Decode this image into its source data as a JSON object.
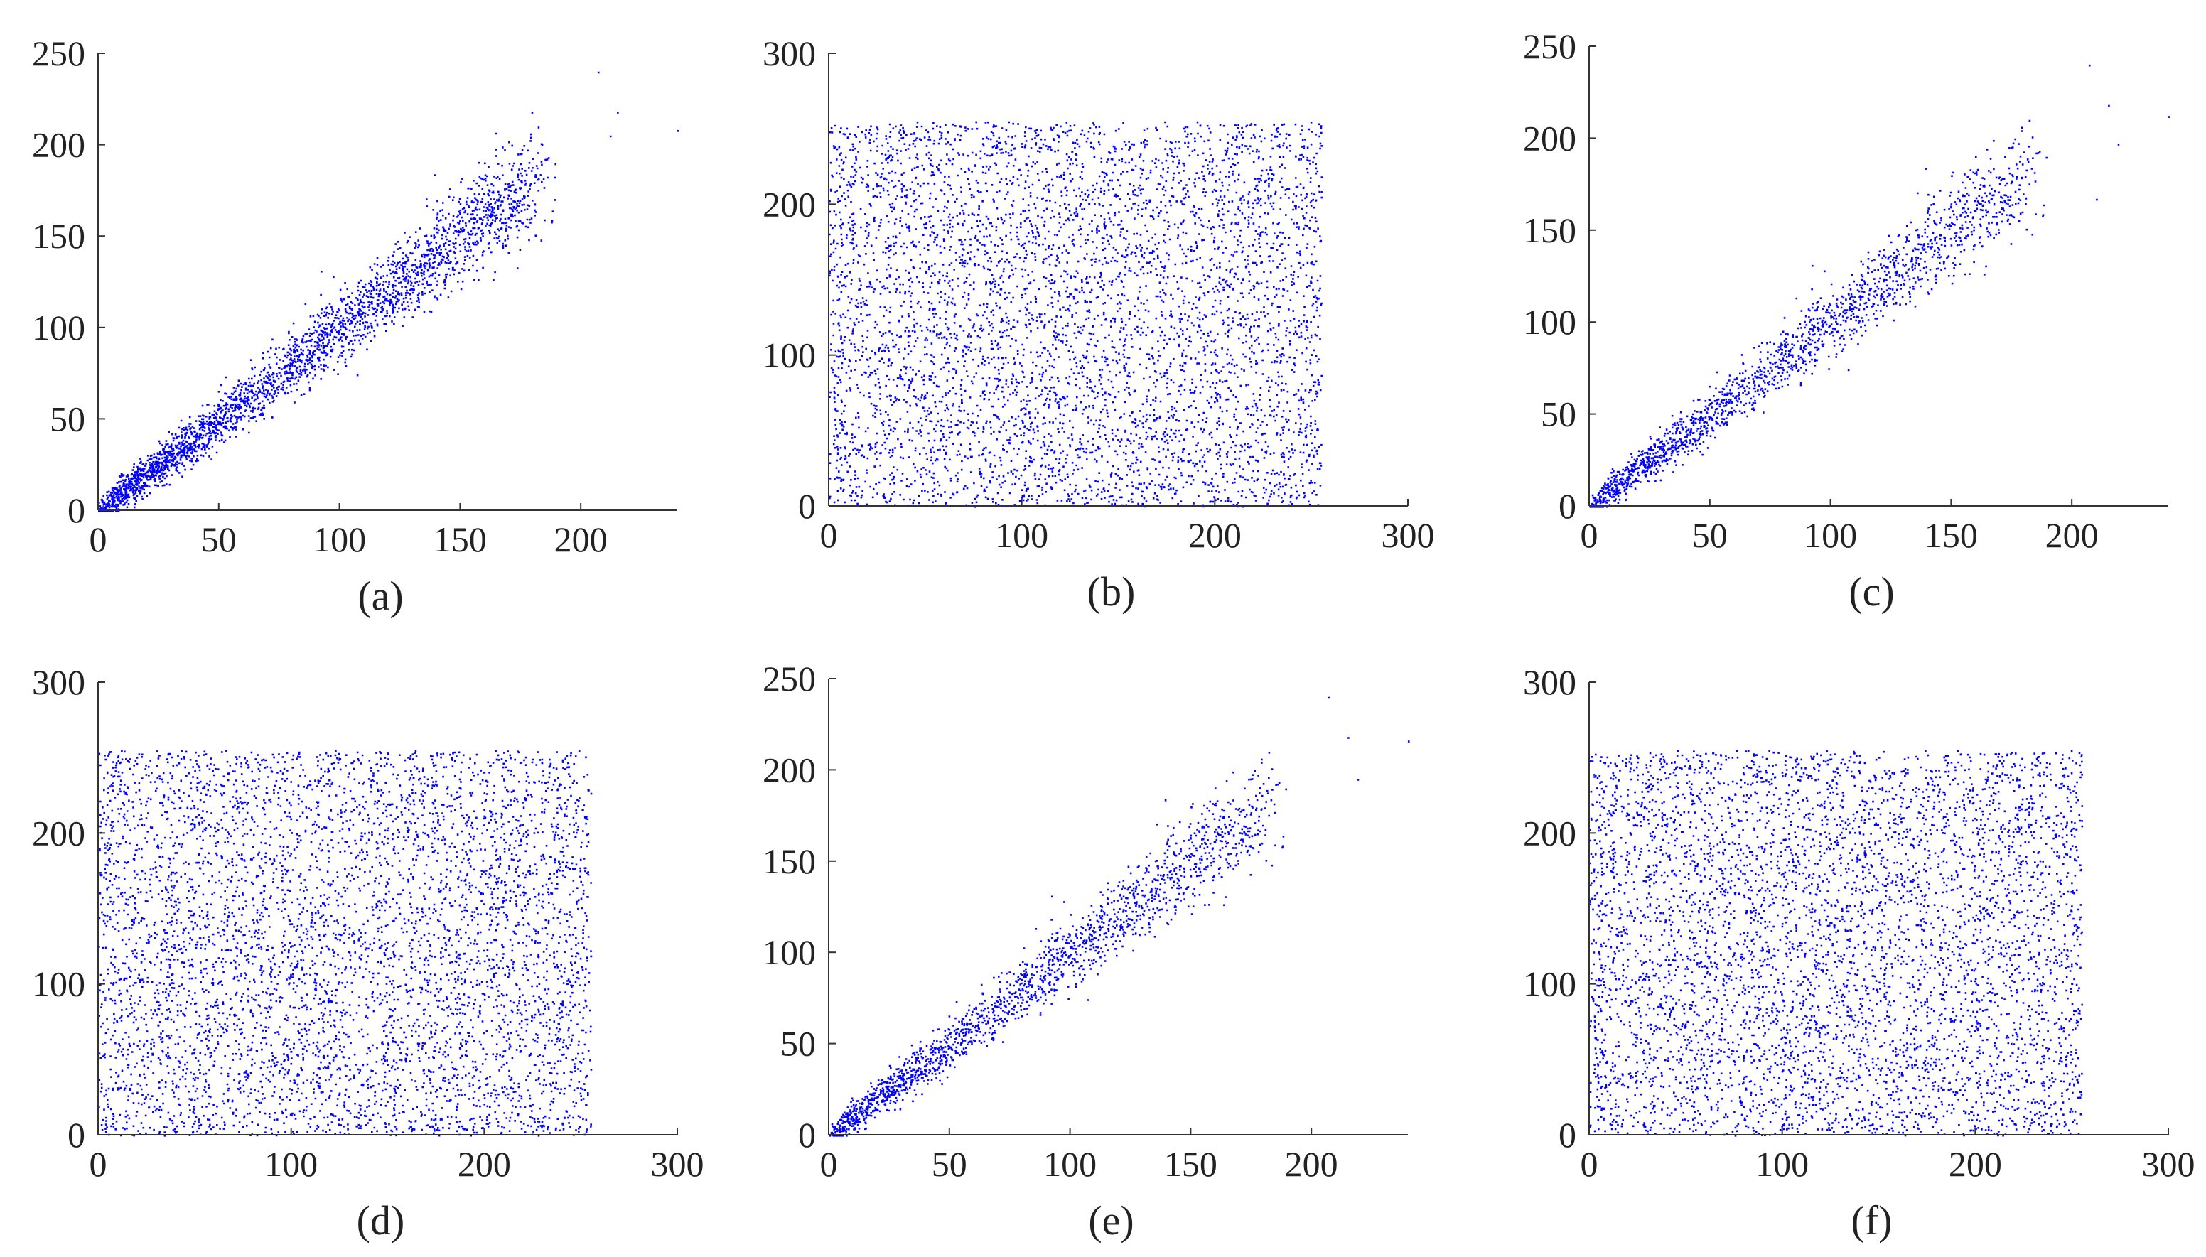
{
  "colors": {
    "points": "#0000ff",
    "axis": "#333333",
    "text": "#222222"
  },
  "chart_data": [
    {
      "type": "scatter",
      "label": "(a)",
      "pattern": "correlated",
      "xlim": [
        0,
        240
      ],
      "ylim": [
        0,
        250
      ],
      "xticks": [
        0,
        50,
        100,
        150,
        200
      ],
      "yticks": [
        0,
        50,
        100,
        150,
        200,
        250
      ],
      "outliers": [
        [
          207,
          240
        ],
        [
          240,
          208
        ],
        [
          215,
          218
        ],
        [
          212,
          205
        ]
      ],
      "grid": false
    },
    {
      "type": "scatter",
      "label": "(b)",
      "pattern": "uniform",
      "xlim": [
        0,
        300
      ],
      "ylim": [
        0,
        300
      ],
      "xticks": [
        0,
        100,
        200,
        300
      ],
      "yticks": [
        0,
        100,
        200,
        300
      ],
      "data_range": [
        0,
        255
      ],
      "grid": false
    },
    {
      "type": "scatter",
      "label": "(c)",
      "pattern": "correlated",
      "xlim": [
        0,
        240
      ],
      "ylim": [
        0,
        250
      ],
      "xticks": [
        0,
        50,
        100,
        150,
        200
      ],
      "yticks": [
        0,
        50,
        100,
        150,
        200,
        250
      ],
      "outliers": [
        [
          207,
          240
        ],
        [
          240,
          212
        ],
        [
          215,
          218
        ],
        [
          219,
          197
        ],
        [
          210,
          167
        ]
      ],
      "grid": false
    },
    {
      "type": "scatter",
      "label": "(d)",
      "pattern": "uniform",
      "xlim": [
        0,
        300
      ],
      "ylim": [
        0,
        300
      ],
      "xticks": [
        0,
        100,
        200,
        300
      ],
      "yticks": [
        0,
        100,
        200,
        300
      ],
      "data_range": [
        0,
        255
      ],
      "grid": false
    },
    {
      "type": "scatter",
      "label": "(e)",
      "pattern": "correlated",
      "xlim": [
        0,
        240
      ],
      "ylim": [
        0,
        250
      ],
      "xticks": [
        0,
        50,
        100,
        150,
        200
      ],
      "yticks": [
        0,
        50,
        100,
        150,
        200,
        250
      ],
      "outliers": [
        [
          207,
          240
        ],
        [
          240,
          216
        ],
        [
          215,
          218
        ],
        [
          219,
          195
        ]
      ],
      "grid": false
    },
    {
      "type": "scatter",
      "label": "(f)",
      "pattern": "uniform",
      "xlim": [
        0,
        300
      ],
      "ylim": [
        0,
        300
      ],
      "xticks": [
        0,
        100,
        200,
        300
      ],
      "yticks": [
        0,
        100,
        200,
        300
      ],
      "data_range": [
        0,
        255
      ],
      "grid": false
    }
  ]
}
